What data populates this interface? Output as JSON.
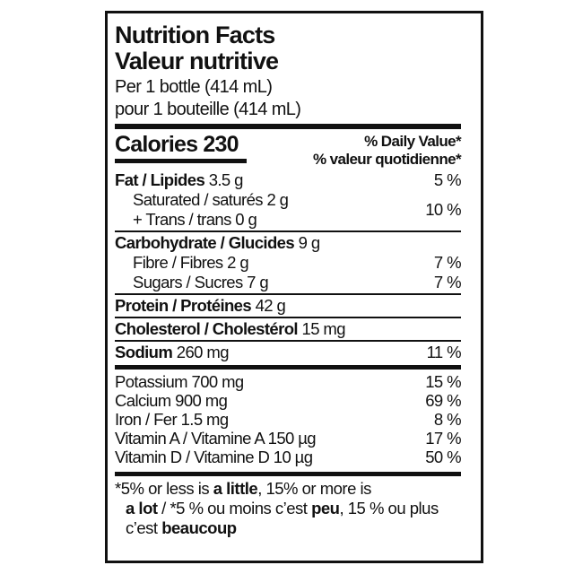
{
  "header": {
    "title_en": "Nutrition Facts",
    "title_fr": "Valeur nutritive",
    "serving_en": "Per 1 bottle (414 mL)",
    "serving_fr": "pour 1 bouteille (414 mL)"
  },
  "calories": {
    "label": "Calories",
    "value": "230",
    "dv_en": "% Daily Value",
    "dv_fr": "% valeur quotidienne",
    "asterisk": "*"
  },
  "nutrients": {
    "fat": {
      "label": "Fat / Lipides",
      "amount": "3.5 g",
      "dv": "5 %"
    },
    "saturated": {
      "label": "Saturated / saturés 2 g"
    },
    "trans": {
      "label": "+ Trans / trans 0 g",
      "dv": "10 %"
    },
    "carb": {
      "label": "Carbohydrate / Glucides",
      "amount": "9 g"
    },
    "fibre": {
      "label": "Fibre / Fibres 2 g",
      "dv": "7 %"
    },
    "sugars": {
      "label": "Sugars / Sucres 7 g",
      "dv": "7 %"
    },
    "protein": {
      "label": "Protein / Protéines",
      "amount": "42 g"
    },
    "cholesterol": {
      "label": "Cholesterol / Cholestérol",
      "amount": "15 mg"
    },
    "sodium": {
      "label": "Sodium",
      "amount": "260 mg",
      "dv": "11 %"
    }
  },
  "vitamins": [
    {
      "label": "Potassium 700 mg",
      "dv": "15 %"
    },
    {
      "label": "Calcium 900 mg",
      "dv": "69 %"
    },
    {
      "label": "Iron / Fer 1.5 mg",
      "dv": "8 %"
    },
    {
      "label": "Vitamin A / Vitamine A 150 µg",
      "dv": "17 %"
    },
    {
      "label": "Vitamin D / Vitamine D 10 µg",
      "dv": "50 %"
    }
  ],
  "footnote": {
    "star": "*",
    "p1": "5% or less is ",
    "b1": "a little",
    "p2": ", 15% or more is ",
    "b2": "a lot",
    "p3": " / ",
    "star2": "*",
    "p4": "5 % ou moins c’est ",
    "b3": "peu",
    "p5": ", 15 % ou plus c’est ",
    "b4": "beaucoup"
  }
}
